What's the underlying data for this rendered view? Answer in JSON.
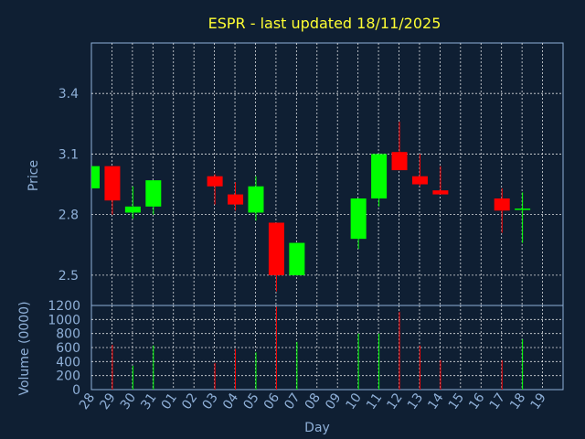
{
  "chart_data": {
    "type": "candlestick",
    "title": "ESPR - last updated 18/11/2025",
    "xlabel": "Day",
    "price_axis": {
      "label": "Price",
      "ylim": [
        2.35,
        3.65
      ],
      "ticks": [
        "2.5",
        "2.8",
        "3.1",
        "3.4"
      ]
    },
    "volume_axis": {
      "label": "Volume (0000)",
      "ylim": [
        0,
        1200
      ],
      "ticks": [
        "0",
        "200",
        "400",
        "600",
        "800",
        "1000",
        "1200"
      ]
    },
    "x_ticks": [
      "28",
      "29",
      "30",
      "31",
      "01",
      "02",
      "03",
      "04",
      "05",
      "06",
      "07",
      "08",
      "09",
      "10",
      "11",
      "12",
      "13",
      "14",
      "15",
      "16",
      "17",
      "18",
      "19"
    ],
    "grid": true,
    "colors": {
      "background": "#0f1f33",
      "up": "#00ff00",
      "down": "#ff0000",
      "grid": "#ffffff",
      "axis": "#8fb0d8",
      "title": "#ffff33"
    },
    "candles": [
      {
        "day": "28",
        "open": 2.93,
        "high": 3.04,
        "low": 2.93,
        "close": 3.04,
        "volume": 0
      },
      {
        "day": "29",
        "open": 3.04,
        "high": 3.04,
        "low": 2.8,
        "close": 2.87,
        "volume": 640
      },
      {
        "day": "30",
        "open": 2.81,
        "high": 2.94,
        "low": 2.78,
        "close": 2.84,
        "volume": 340
      },
      {
        "day": "31",
        "open": 2.84,
        "high": 2.97,
        "low": 2.8,
        "close": 2.97,
        "volume": 630
      },
      {
        "day": "03",
        "open": 2.99,
        "high": 3.0,
        "low": 2.85,
        "close": 2.94,
        "volume": 380
      },
      {
        "day": "04",
        "open": 2.9,
        "high": 2.96,
        "low": 2.82,
        "close": 2.85,
        "volume": 580
      },
      {
        "day": "05",
        "open": 2.81,
        "high": 2.99,
        "low": 2.77,
        "close": 2.94,
        "volume": 530
      },
      {
        "day": "06",
        "open": 2.76,
        "high": 2.76,
        "low": 2.42,
        "close": 2.5,
        "volume": 1180
      },
      {
        "day": "07",
        "open": 2.5,
        "high": 2.66,
        "low": 2.5,
        "close": 2.66,
        "volume": 680
      },
      {
        "day": "10",
        "open": 2.68,
        "high": 2.88,
        "low": 2.63,
        "close": 2.88,
        "volume": 800
      },
      {
        "day": "11",
        "open": 2.88,
        "high": 3.1,
        "low": 2.84,
        "close": 3.1,
        "volume": 800
      },
      {
        "day": "12",
        "open": 3.11,
        "high": 3.26,
        "low": 3.02,
        "close": 3.02,
        "volume": 1110
      },
      {
        "day": "13",
        "open": 2.99,
        "high": 3.1,
        "low": 2.94,
        "close": 2.95,
        "volume": 630
      },
      {
        "day": "14",
        "open": 2.92,
        "high": 3.04,
        "low": 2.9,
        "close": 2.9,
        "volume": 420
      },
      {
        "day": "17",
        "open": 2.88,
        "high": 2.93,
        "low": 2.71,
        "close": 2.82,
        "volume": 420
      },
      {
        "day": "18",
        "open": 2.83,
        "high": 2.91,
        "low": 2.66,
        "close": 2.83,
        "volume": 720
      }
    ]
  }
}
